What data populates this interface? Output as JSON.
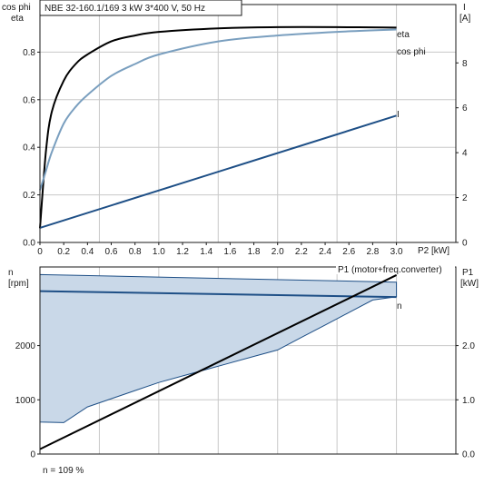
{
  "colors": {
    "eta": "#000000",
    "cos_phi": "#7a9fbf",
    "current": "#1e4f86",
    "speed_line": "#1e4f86",
    "speed_band": "#c9d8e8",
    "power": "#000000"
  },
  "chart_data": [
    {
      "type": "line",
      "title": "NBE 32-160.1/169   3 kW   3*400 V, 50 Hz",
      "xlabel": "P2 [kW]",
      "ylabel_left": [
        "cos phi",
        "eta"
      ],
      "ylabel_right": [
        "I",
        "[A]"
      ],
      "xlim": [
        0,
        3.5
      ],
      "ylim_left": [
        0,
        1.0
      ],
      "ylim_right": [
        0,
        10.6
      ],
      "x_ticks": [
        "0",
        "0.2",
        "0.4",
        "0.6",
        "0.8",
        "1.0",
        "1.2",
        "1.4",
        "1.6",
        "1.8",
        "2.0",
        "2.2",
        "2.4",
        "2.6",
        "2.8",
        "3.0"
      ],
      "y_ticks_left": [
        "0.0",
        "0.2",
        "0.4",
        "0.6",
        "0.8"
      ],
      "y_ticks_right": [
        "0",
        "2",
        "4",
        "6",
        "8"
      ],
      "grid": true,
      "series": [
        {
          "name": "eta",
          "axis": "left",
          "x": [
            0.0,
            0.05,
            0.1,
            0.2,
            0.3,
            0.4,
            0.6,
            0.8,
            1.0,
            1.5,
            2.0,
            2.5,
            3.0
          ],
          "y": [
            0.06,
            0.38,
            0.55,
            0.68,
            0.75,
            0.79,
            0.845,
            0.87,
            0.885,
            0.9,
            0.905,
            0.905,
            0.903
          ]
        },
        {
          "name": "cos phi",
          "axis": "left",
          "x": [
            0.0,
            0.05,
            0.1,
            0.2,
            0.3,
            0.4,
            0.6,
            0.8,
            1.0,
            1.5,
            2.0,
            2.5,
            3.0
          ],
          "y": [
            0.22,
            0.3,
            0.38,
            0.5,
            0.57,
            0.62,
            0.7,
            0.75,
            0.79,
            0.845,
            0.87,
            0.885,
            0.895
          ]
        },
        {
          "name": "I",
          "axis": "right",
          "x": [
            0.0,
            3.0
          ],
          "y": [
            0.65,
            5.65
          ]
        }
      ]
    },
    {
      "type": "area",
      "ylabel_left": [
        "n",
        "[rpm]"
      ],
      "ylabel_right": [
        "P1",
        "[kW]"
      ],
      "xlim": [
        0,
        3.5
      ],
      "ylim_left": [
        0,
        3450
      ],
      "ylim_right": [
        0,
        3.45
      ],
      "y_ticks_left": [
        "0",
        "1000",
        "2000"
      ],
      "y_ticks_right": [
        "0.0",
        "1.0",
        "2.0"
      ],
      "grid": true,
      "band_upper": {
        "x": [
          0.0,
          3.0
        ],
        "y": [
          3310,
          3170
        ]
      },
      "band_lower": {
        "x": [
          0.0,
          0.2,
          0.4,
          0.6,
          0.8,
          1.0,
          1.2,
          1.4,
          1.6,
          1.8,
          2.0,
          2.2,
          2.4,
          2.6,
          2.8,
          3.0
        ],
        "y": [
          590,
          580,
          870,
          1020,
          1170,
          1320,
          1440,
          1560,
          1680,
          1800,
          1920,
          2150,
          2380,
          2610,
          2840,
          2900
        ]
      },
      "series": [
        {
          "name": "n",
          "axis": "left",
          "x": [
            0.0,
            3.0
          ],
          "y": [
            3005,
            2895
          ]
        },
        {
          "name": "P1 (motor+freq.converter)",
          "axis": "right",
          "x": [
            0.0,
            3.0
          ],
          "y": [
            0.09,
            3.3
          ]
        }
      ],
      "annotation": "n = 109 %"
    }
  ]
}
